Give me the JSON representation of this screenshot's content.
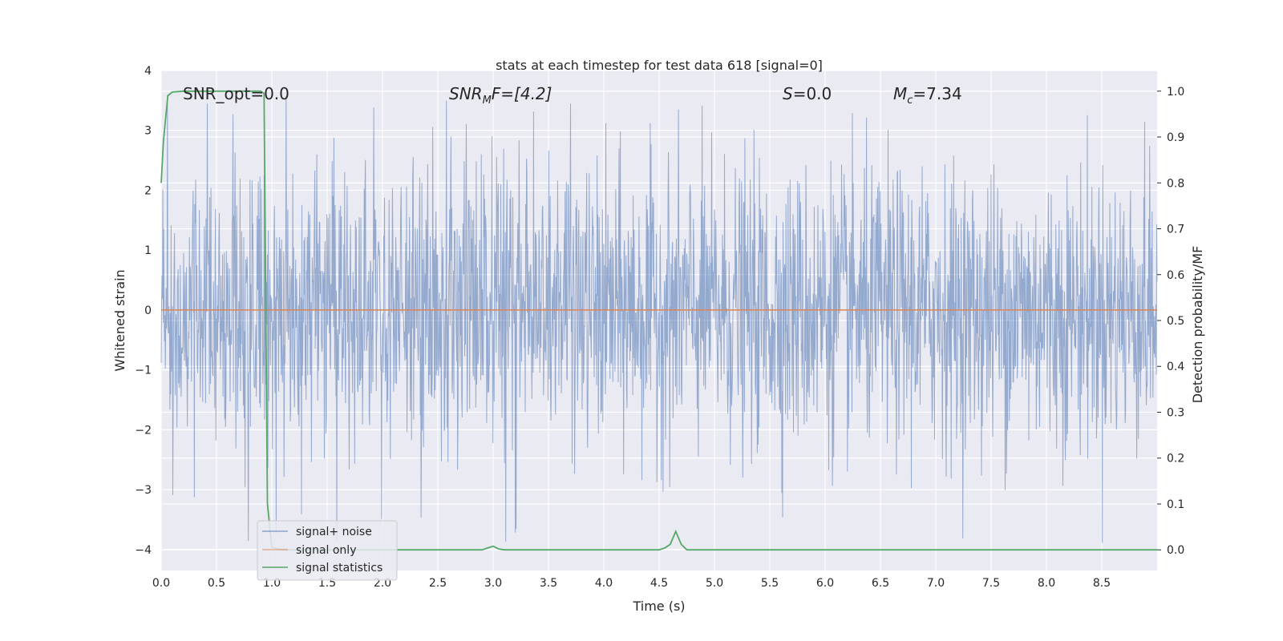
{
  "chart_data": {
    "type": "line",
    "title": "stats at each timestep for test data 618 [signal=0]",
    "xlabel": "Time (s)",
    "ylabel": "Whitened strain",
    "y2label": "Detection probability/MF",
    "xlim": [
      0,
      9.0
    ],
    "ylim": [
      -4.35,
      4.0
    ],
    "y2lim": [
      -0.045,
      1.045
    ],
    "x_ticks": [
      "0.0",
      "0.5",
      "1.0",
      "1.5",
      "2.0",
      "2.5",
      "3.0",
      "3.5",
      "4.0",
      "4.5",
      "5.0",
      "5.5",
      "6.0",
      "6.5",
      "7.0",
      "7.5",
      "8.0",
      "8.5"
    ],
    "y_ticks": [
      "4",
      "3",
      "2",
      "1",
      "0",
      "−1",
      "−2",
      "−3",
      "−4"
    ],
    "y2_ticks": [
      "1.0",
      "0.9",
      "0.8",
      "0.7",
      "0.6",
      "0.5",
      "0.4",
      "0.3",
      "0.2",
      "0.1",
      "0.0"
    ],
    "grid": true,
    "legend_position": "lower-left",
    "annotations": {
      "snr_opt": "SNR_opt=0.0",
      "snr_mf_main": "SNR",
      "snr_mf_sub": "M",
      "snr_mf_rest": "F=[4.2]",
      "s_main": "S",
      "s_rest": "=0.0",
      "mc_main": "M",
      "mc_sub": "c",
      "mc_rest": "=7.34"
    },
    "series": [
      {
        "name": "signal+ noise",
        "color": "#4c72b0",
        "axis": "left",
        "description_values": "whitened strain noise, approx. range -4 to 3.5",
        "noise_bounds": {
          "upper_typical": 2.3,
          "lower_typical": -1.9,
          "max": 3.6,
          "min": -4.0
        }
      },
      {
        "name": "signal only",
        "color": "#dd8452",
        "axis": "left",
        "x": [
          0.0,
          9.0
        ],
        "y": [
          0.0,
          0.0
        ]
      },
      {
        "name": "signal statistics",
        "color": "#55a868",
        "axis": "right",
        "x": [
          0.0,
          0.02,
          0.04,
          0.06,
          0.1,
          0.2,
          0.4,
          0.6,
          0.8,
          0.9,
          0.93,
          0.96,
          1.0,
          1.1,
          1.5,
          2.0,
          2.5,
          2.9,
          2.95,
          3.0,
          3.05,
          3.1,
          3.5,
          4.0,
          4.5,
          4.55,
          4.6,
          4.65,
          4.7,
          4.75,
          5.0,
          5.5,
          6.0,
          7.0,
          8.0,
          9.0
        ],
        "y": [
          0.8,
          0.89,
          0.94,
          0.99,
          0.998,
          1.0,
          1.0,
          1.0,
          1.0,
          1.0,
          0.995,
          0.1,
          0.005,
          0.0,
          0.0,
          0.0,
          0.0,
          0.0,
          0.004,
          0.008,
          0.002,
          0.0,
          0.0,
          0.0,
          0.0,
          0.004,
          0.012,
          0.04,
          0.012,
          0.0,
          0.0,
          0.0,
          0.0,
          0.0,
          0.0,
          0.0
        ]
      }
    ]
  }
}
